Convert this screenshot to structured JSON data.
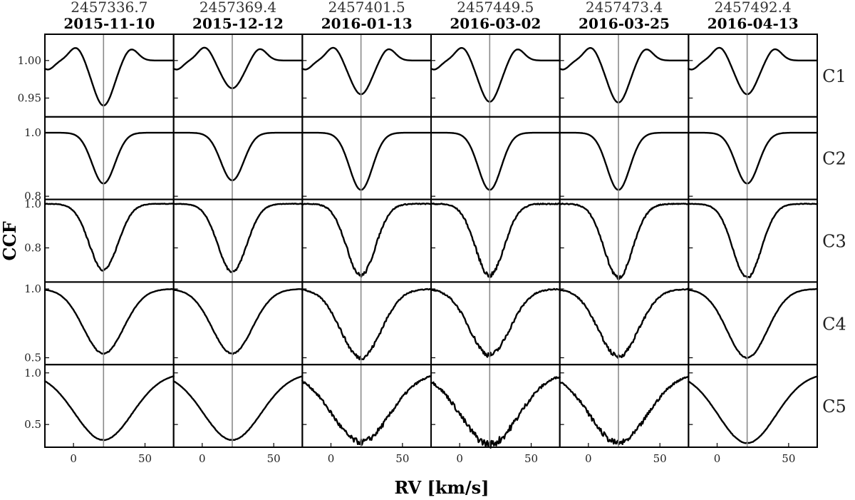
{
  "chart_data": {
    "type": "line",
    "xlabel": "RV [km/s]",
    "ylabel": "CCF",
    "xlim": [
      -20,
      70
    ],
    "x_ticks": [
      "0",
      "50"
    ],
    "x_tick_values": [
      0,
      50
    ],
    "vertical_marker_rv": 21,
    "columns": [
      {
        "jd": "2457336.7",
        "date": "2015-11-10"
      },
      {
        "jd": "2457369.4",
        "date": "2015-12-12"
      },
      {
        "jd": "2457401.5",
        "date": "2016-01-13"
      },
      {
        "jd": "2457449.5",
        "date": "2016-03-02"
      },
      {
        "jd": "2457473.4",
        "date": "2016-03-25"
      },
      {
        "jd": "2457492.4",
        "date": "2016-04-13"
      }
    ],
    "rows": [
      {
        "label": "C1",
        "ylim": [
          0.925,
          1.035
        ],
        "yticks": [
          0.95,
          1.0
        ],
        "ytick_labels": [
          "0.95",
          "1.00"
        ],
        "depth_min": [
          0.94,
          0.963,
          0.955,
          0.945,
          0.944,
          0.955
        ],
        "width_kms": 7,
        "noise": [
          0,
          0,
          0,
          0,
          0,
          0
        ]
      },
      {
        "label": "C2",
        "ylim": [
          0.79,
          1.05
        ],
        "yticks": [
          0.8,
          1.0
        ],
        "ytick_labels": [
          "0.8",
          "1.0"
        ],
        "depth_min": [
          0.84,
          0.85,
          0.82,
          0.82,
          0.82,
          0.84
        ],
        "width_kms": 8,
        "noise": [
          0,
          0,
          0,
          0,
          0,
          0
        ]
      },
      {
        "label": "C3",
        "ylim": [
          0.645,
          1.02
        ],
        "yticks": [
          0.8,
          1.0
        ],
        "ytick_labels": [
          "0.8",
          "1.0"
        ],
        "depth_min": [
          0.7,
          0.69,
          0.675,
          0.675,
          0.665,
          0.665
        ],
        "width_kms": 10,
        "noise": [
          0.004,
          0.004,
          0.007,
          0.008,
          0.007,
          0.004
        ]
      },
      {
        "label": "C4",
        "ylim": [
          0.45,
          1.05
        ],
        "yticks": [
          0.5,
          1.0
        ],
        "ytick_labels": [
          "0.5",
          "1.0"
        ],
        "depth_min": [
          0.53,
          0.53,
          0.5,
          0.52,
          0.51,
          0.5
        ],
        "width_kms": 14,
        "noise": [
          0.003,
          0.003,
          0.012,
          0.014,
          0.012,
          0.003
        ]
      },
      {
        "label": "C5",
        "ylim": [
          0.28,
          1.08
        ],
        "yticks": [
          0.5,
          1.0
        ],
        "ytick_labels": [
          "0.5",
          "1.0"
        ],
        "depth_min": [
          0.35,
          0.35,
          0.33,
          0.31,
          0.32,
          0.32
        ],
        "width_kms": 20,
        "noise": [
          0.002,
          0.002,
          0.022,
          0.028,
          0.022,
          0.002
        ]
      }
    ]
  }
}
